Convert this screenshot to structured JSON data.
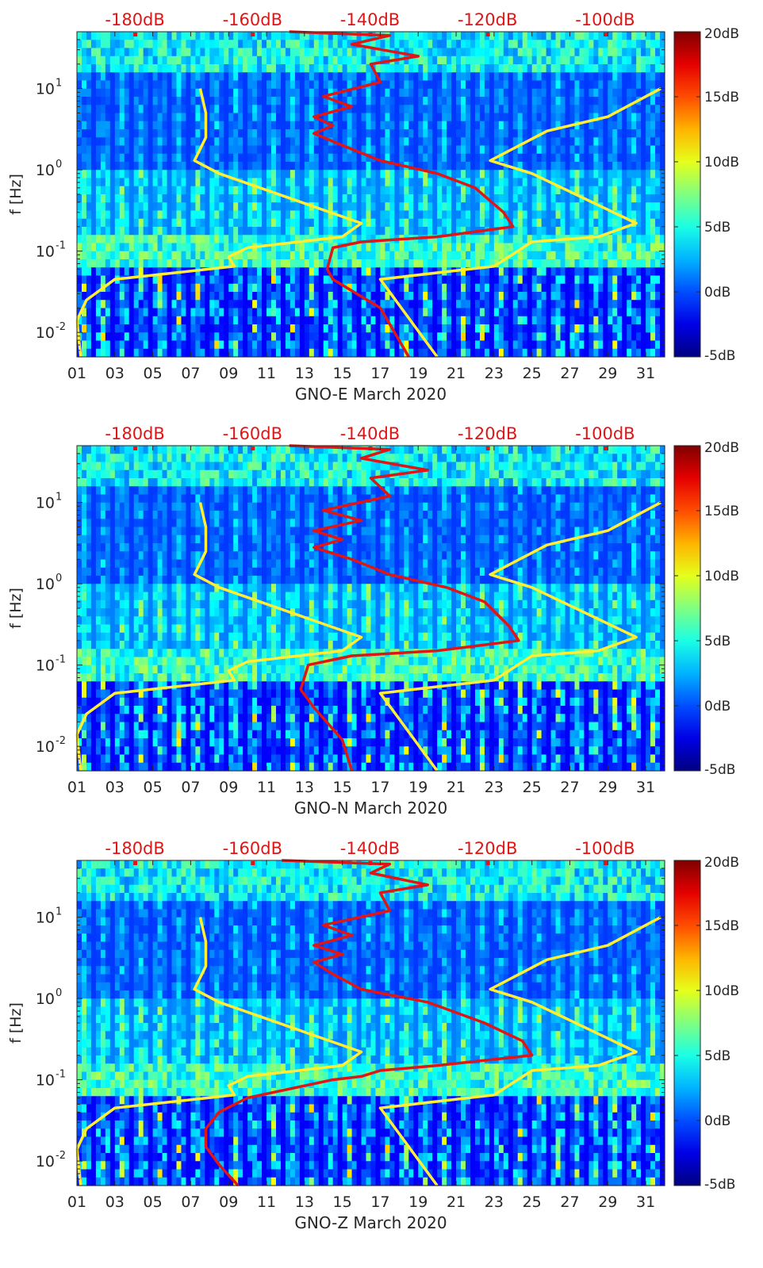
{
  "chart_data": [
    {
      "type": "heatmap",
      "xlabel": "GNO-E March 2020",
      "ylabel": "f [Hz]",
      "x_tick_labels": [
        "01",
        "03",
        "05",
        "07",
        "09",
        "11",
        "13",
        "15",
        "17",
        "19",
        "21",
        "23",
        "25",
        "27",
        "29",
        "31"
      ],
      "x_ticks": [
        1,
        3,
        5,
        7,
        9,
        11,
        13,
        15,
        17,
        19,
        21,
        23,
        25,
        27,
        29,
        31
      ],
      "xlim": [
        1,
        32
      ],
      "ylim": [
        0.005,
        50
      ],
      "y_scale": "log",
      "y_tick_labels": [
        "10^-2",
        "10^-1",
        "10^0",
        "10^1"
      ],
      "y_ticks": [
        0.01,
        0.1,
        1,
        10
      ],
      "top_axis_labels": [
        "-180dB",
        "-160dB",
        "-140dB",
        "-120dB",
        "-100dB"
      ],
      "top_axis_values": [
        -180,
        -160,
        -140,
        -120,
        -100
      ],
      "colorbar": {
        "labels": [
          "20dB",
          "15dB",
          "10dB",
          "5dB",
          "0dB",
          "-5dB"
        ],
        "values": [
          20,
          15,
          10,
          5,
          0,
          -5
        ],
        "range": [
          -5,
          20
        ],
        "colormap": "jet"
      },
      "series": [
        {
          "color": "#ffee33",
          "points": [
            [
              7.5,
              10
            ],
            [
              7.8,
              5
            ],
            [
              7.8,
              2.5
            ],
            [
              7.2,
              1.3
            ],
            [
              8.5,
              0.9
            ],
            [
              16.0,
              0.22
            ],
            [
              15.0,
              0.15
            ],
            [
              10.0,
              0.11
            ],
            [
              9.0,
              0.085
            ],
            [
              9.3,
              0.065
            ],
            [
              3.0,
              0.045
            ],
            [
              1.5,
              0.025
            ],
            [
              1.0,
              0.014
            ],
            [
              1.2,
              0.005
            ]
          ]
        },
        {
          "color": "#ffee33",
          "points": [
            [
              31.8,
              10
            ],
            [
              29.0,
              4.5
            ],
            [
              25.8,
              3.0
            ],
            [
              22.8,
              1.3
            ],
            [
              25.0,
              0.9
            ],
            [
              30.5,
              0.22
            ],
            [
              28.5,
              0.15
            ],
            [
              25.0,
              0.13
            ],
            [
              23.0,
              0.065
            ],
            [
              17.0,
              0.045
            ],
            [
              20.0,
              0.005
            ]
          ]
        },
        {
          "color": "#e01515",
          "points": [
            [
              12.2,
              50
            ],
            [
              17.5,
              45
            ],
            [
              15.5,
              35
            ],
            [
              19.0,
              25
            ],
            [
              16.5,
              20
            ],
            [
              17.0,
              12
            ],
            [
              14.0,
              8
            ],
            [
              15.5,
              6
            ],
            [
              13.5,
              4.5
            ],
            [
              14.5,
              3.5
            ],
            [
              13.5,
              2.8
            ],
            [
              15.0,
              2.0
            ],
            [
              17.0,
              1.3
            ],
            [
              20.0,
              0.9
            ],
            [
              22.0,
              0.6
            ],
            [
              23.5,
              0.3
            ],
            [
              24.0,
              0.2
            ],
            [
              20.0,
              0.15
            ],
            [
              16.0,
              0.13
            ],
            [
              14.5,
              0.11
            ],
            [
              14.2,
              0.06
            ],
            [
              14.5,
              0.045
            ],
            [
              17.0,
              0.02
            ],
            [
              18.5,
              0.005
            ]
          ]
        }
      ]
    },
    {
      "type": "heatmap",
      "xlabel": "GNO-N March 2020",
      "ylabel": "f [Hz]",
      "x_tick_labels": [
        "01",
        "03",
        "05",
        "07",
        "09",
        "11",
        "13",
        "15",
        "17",
        "19",
        "21",
        "23",
        "25",
        "27",
        "29",
        "31"
      ],
      "x_ticks": [
        1,
        3,
        5,
        7,
        9,
        11,
        13,
        15,
        17,
        19,
        21,
        23,
        25,
        27,
        29,
        31
      ],
      "xlim": [
        1,
        32
      ],
      "ylim": [
        0.005,
        50
      ],
      "y_scale": "log",
      "y_tick_labels": [
        "10^-2",
        "10^-1",
        "10^0",
        "10^1"
      ],
      "y_ticks": [
        0.01,
        0.1,
        1,
        10
      ],
      "top_axis_labels": [
        "-180dB",
        "-160dB",
        "-140dB",
        "-120dB",
        "-100dB"
      ],
      "top_axis_values": [
        -180,
        -160,
        -140,
        -120,
        -100
      ],
      "colorbar": {
        "labels": [
          "20dB",
          "15dB",
          "10dB",
          "5dB",
          "0dB",
          "-5dB"
        ],
        "values": [
          20,
          15,
          10,
          5,
          0,
          -5
        ],
        "range": [
          -5,
          20
        ],
        "colormap": "jet"
      },
      "series": [
        {
          "color": "#ffee33",
          "points": [
            [
              7.5,
              10
            ],
            [
              7.8,
              5
            ],
            [
              7.8,
              2.5
            ],
            [
              7.2,
              1.3
            ],
            [
              8.5,
              0.9
            ],
            [
              16.0,
              0.22
            ],
            [
              15.0,
              0.15
            ],
            [
              10.0,
              0.11
            ],
            [
              9.0,
              0.085
            ],
            [
              9.3,
              0.065
            ],
            [
              3.0,
              0.045
            ],
            [
              1.5,
              0.025
            ],
            [
              1.0,
              0.014
            ],
            [
              1.2,
              0.005
            ]
          ]
        },
        {
          "color": "#ffee33",
          "points": [
            [
              31.8,
              10
            ],
            [
              29.0,
              4.5
            ],
            [
              25.8,
              3.0
            ],
            [
              22.8,
              1.3
            ],
            [
              25.0,
              0.9
            ],
            [
              30.5,
              0.22
            ],
            [
              28.5,
              0.15
            ],
            [
              25.0,
              0.13
            ],
            [
              23.0,
              0.065
            ],
            [
              17.0,
              0.045
            ],
            [
              20.0,
              0.005
            ]
          ]
        },
        {
          "color": "#e01515",
          "points": [
            [
              12.2,
              50
            ],
            [
              17.5,
              45
            ],
            [
              16.0,
              35
            ],
            [
              19.5,
              25
            ],
            [
              16.5,
              20
            ],
            [
              17.5,
              12
            ],
            [
              14.0,
              8
            ],
            [
              16.0,
              6
            ],
            [
              13.5,
              4.5
            ],
            [
              15.0,
              3.5
            ],
            [
              13.5,
              2.8
            ],
            [
              15.5,
              2.0
            ],
            [
              17.5,
              1.3
            ],
            [
              20.5,
              0.9
            ],
            [
              22.5,
              0.6
            ],
            [
              23.8,
              0.3
            ],
            [
              24.3,
              0.2
            ],
            [
              20.0,
              0.15
            ],
            [
              15.5,
              0.13
            ],
            [
              13.2,
              0.1
            ],
            [
              12.8,
              0.05
            ],
            [
              13.5,
              0.03
            ],
            [
              15.0,
              0.012
            ],
            [
              15.5,
              0.005
            ]
          ]
        }
      ]
    },
    {
      "type": "heatmap",
      "xlabel": "GNO-Z March 2020",
      "ylabel": "f [Hz]",
      "x_tick_labels": [
        "01",
        "03",
        "05",
        "07",
        "09",
        "11",
        "13",
        "15",
        "17",
        "19",
        "21",
        "23",
        "25",
        "27",
        "29",
        "31"
      ],
      "x_ticks": [
        1,
        3,
        5,
        7,
        9,
        11,
        13,
        15,
        17,
        19,
        21,
        23,
        25,
        27,
        29,
        31
      ],
      "xlim": [
        1,
        32
      ],
      "ylim": [
        0.005,
        50
      ],
      "y_scale": "log",
      "y_tick_labels": [
        "10^-2",
        "10^-1",
        "10^0",
        "10^1"
      ],
      "y_ticks": [
        0.01,
        0.1,
        1,
        10
      ],
      "top_axis_labels": [
        "-180dB",
        "-160dB",
        "-140dB",
        "-120dB",
        "-100dB"
      ],
      "top_axis_values": [
        -180,
        -160,
        -140,
        -120,
        -100
      ],
      "colorbar": {
        "labels": [
          "20dB",
          "15dB",
          "10dB",
          "5dB",
          "0dB",
          "-5dB"
        ],
        "values": [
          20,
          15,
          10,
          5,
          0,
          -5
        ],
        "range": [
          -5,
          20
        ],
        "colormap": "jet"
      },
      "series": [
        {
          "color": "#ffee33",
          "points": [
            [
              7.5,
              10
            ],
            [
              7.8,
              5
            ],
            [
              7.8,
              2.5
            ],
            [
              7.2,
              1.3
            ],
            [
              8.5,
              0.9
            ],
            [
              16.0,
              0.22
            ],
            [
              15.0,
              0.15
            ],
            [
              10.0,
              0.11
            ],
            [
              9.0,
              0.085
            ],
            [
              9.3,
              0.065
            ],
            [
              3.0,
              0.045
            ],
            [
              1.5,
              0.025
            ],
            [
              1.0,
              0.014
            ],
            [
              1.2,
              0.005
            ]
          ]
        },
        {
          "color": "#ffee33",
          "points": [
            [
              31.8,
              10
            ],
            [
              29.0,
              4.5
            ],
            [
              25.8,
              3.0
            ],
            [
              22.8,
              1.3
            ],
            [
              25.0,
              0.9
            ],
            [
              30.5,
              0.22
            ],
            [
              28.5,
              0.15
            ],
            [
              25.0,
              0.13
            ],
            [
              23.0,
              0.065
            ],
            [
              17.0,
              0.045
            ],
            [
              20.0,
              0.005
            ]
          ]
        },
        {
          "color": "#e01515",
          "points": [
            [
              11.8,
              50
            ],
            [
              17.5,
              45
            ],
            [
              16.5,
              35
            ],
            [
              19.5,
              25
            ],
            [
              17.0,
              20
            ],
            [
              17.5,
              12
            ],
            [
              14.0,
              8
            ],
            [
              15.5,
              6
            ],
            [
              13.5,
              4.5
            ],
            [
              15.0,
              3.5
            ],
            [
              13.5,
              2.8
            ],
            [
              14.5,
              2.0
            ],
            [
              16.0,
              1.3
            ],
            [
              19.5,
              0.9
            ],
            [
              22.5,
              0.5
            ],
            [
              24.5,
              0.3
            ],
            [
              25.0,
              0.2
            ],
            [
              20.0,
              0.15
            ],
            [
              17.0,
              0.13
            ],
            [
              16.0,
              0.11
            ],
            [
              14.5,
              0.1
            ],
            [
              10.0,
              0.06
            ],
            [
              8.5,
              0.04
            ],
            [
              7.8,
              0.025
            ],
            [
              7.8,
              0.015
            ],
            [
              8.5,
              0.009
            ],
            [
              9.5,
              0.005
            ]
          ]
        }
      ]
    }
  ]
}
